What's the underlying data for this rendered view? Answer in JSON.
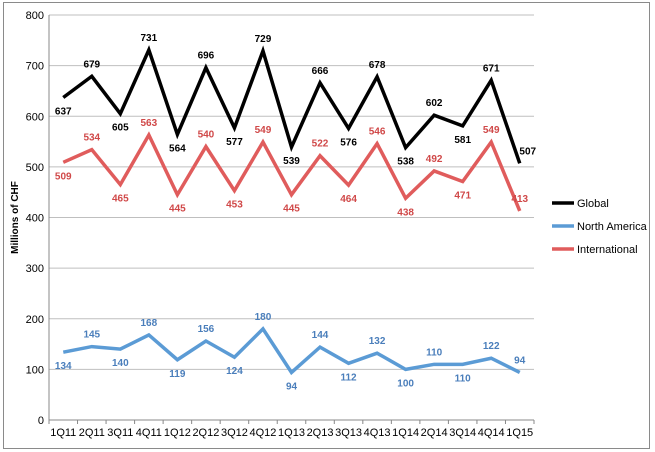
{
  "chart_data": {
    "type": "line",
    "title": "",
    "xlabel": "",
    "ylabel": "Millions of CHF",
    "ylim": [
      0,
      800
    ],
    "yticks": [
      0,
      100,
      200,
      300,
      400,
      500,
      600,
      700,
      800
    ],
    "grid": "horizontal",
    "legend_position": "right",
    "categories": [
      "1Q11",
      "2Q11",
      "3Q11",
      "4Q11",
      "1Q12",
      "2Q12",
      "3Q12",
      "4Q12",
      "1Q13",
      "2Q13",
      "3Q13",
      "4Q13",
      "1Q14",
      "2Q14",
      "3Q14",
      "4Q14",
      "1Q15"
    ],
    "series": [
      {
        "name": "Global",
        "color": "#000000",
        "label_color": "#000000",
        "values": [
          637,
          679,
          605,
          731,
          564,
          696,
          577,
          729,
          539,
          666,
          576,
          678,
          538,
          602,
          581,
          671,
          507
        ]
      },
      {
        "name": "North America",
        "color": "#5b9bd5",
        "label_color": "#4a7ebb",
        "values": [
          134,
          145,
          140,
          168,
          119,
          156,
          124,
          180,
          94,
          144,
          112,
          132,
          100,
          110,
          110,
          122,
          94
        ]
      },
      {
        "name": "International",
        "color": "#e05c5c",
        "label_color": "#d04848",
        "values": [
          509,
          534,
          465,
          563,
          445,
          540,
          453,
          549,
          445,
          522,
          464,
          546,
          438,
          492,
          471,
          549,
          413
        ]
      }
    ]
  }
}
